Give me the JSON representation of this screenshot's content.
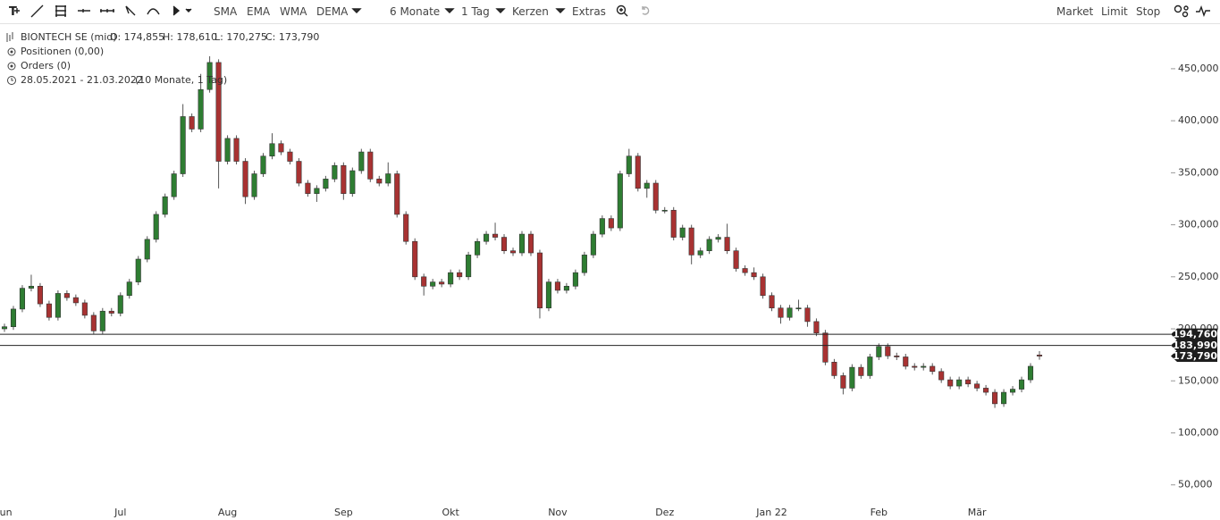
{
  "toolbar": {
    "indicators": [
      "SMA",
      "EMA",
      "WMA",
      "DEMA"
    ],
    "period": "6 Monate",
    "interval": "1 Tag",
    "chart_style": "Kerzen",
    "extras": "Extras",
    "orders": [
      "Market",
      "Limit",
      "Stop"
    ]
  },
  "info": {
    "instrument": "BIONTECH SE (mid)",
    "open": "O: 174,855",
    "high": "H: 178,610",
    "low": "L: 170,275",
    "close": "C: 173,790",
    "positions": "Positionen (0,00)",
    "orders": "Orders (0)",
    "range": "28.05.2021 - 21.03.2022",
    "range_detail": "(10 Monate, 1 Tag)"
  },
  "chart_data": {
    "type": "candlestick",
    "categories": [
      "Jun",
      null,
      null,
      null,
      null,
      null,
      null,
      null,
      null,
      null,
      null,
      null,
      null,
      "Jul",
      null,
      null,
      null,
      null,
      null,
      null,
      null,
      null,
      null,
      null,
      null,
      "Aug",
      null,
      null,
      null,
      null,
      null,
      null,
      null,
      null,
      null,
      null,
      null,
      null,
      "Sep",
      null,
      null,
      null,
      null,
      null,
      null,
      null,
      null,
      null,
      null,
      null,
      "Okt",
      null,
      null,
      null,
      null,
      null,
      null,
      null,
      null,
      null,
      null,
      null,
      "Nov",
      null,
      null,
      null,
      null,
      null,
      null,
      null,
      null,
      null,
      null,
      null,
      "Dez",
      null,
      null,
      null,
      null,
      null,
      null,
      null,
      null,
      null,
      null,
      null,
      "Jan 22",
      null,
      null,
      null,
      null,
      null,
      null,
      null,
      null,
      null,
      null,
      null,
      "Feb",
      null,
      null,
      null,
      null,
      null,
      null,
      null,
      null,
      null,
      null,
      "Mär",
      null,
      null,
      null,
      null,
      null,
      null,
      null
    ],
    "open": [
      200,
      202,
      219,
      239,
      241,
      224,
      211,
      234,
      230,
      225,
      213,
      198,
      217,
      215,
      232,
      245,
      267,
      286,
      310,
      327,
      349,
      404,
      392,
      430,
      456,
      361,
      383,
      361,
      327,
      349,
      366,
      378,
      370,
      361,
      340,
      330,
      335,
      344,
      357,
      330,
      352,
      370,
      344,
      340,
      349,
      310,
      284,
      250,
      241,
      245,
      243,
      254,
      250,
      271,
      284,
      291,
      288,
      275,
      273,
      291,
      273,
      220,
      245,
      237,
      241,
      254,
      271,
      291,
      306,
      297,
      349,
      366,
      335,
      340,
      314,
      314,
      288,
      297,
      271,
      275,
      286,
      288,
      275,
      258,
      254,
      250,
      232,
      220,
      211,
      220,
      220,
      207,
      196,
      168,
      155,
      143,
      163,
      155,
      173,
      183,
      174,
      173,
      164,
      163,
      164,
      159,
      151,
      145,
      151,
      147,
      143,
      139,
      128,
      139,
      142,
      151,
      174.855
    ],
    "high": [
      205,
      222,
      242,
      252,
      244,
      227,
      237,
      237,
      233,
      228,
      216,
      220,
      220,
      235,
      248,
      270,
      289,
      313,
      330,
      352,
      416,
      407,
      445,
      462,
      459,
      386,
      386,
      364,
      352,
      369,
      388,
      381,
      373,
      364,
      343,
      338,
      347,
      360,
      360,
      355,
      373,
      373,
      347,
      360,
      352,
      313,
      287,
      253,
      248,
      248,
      257,
      257,
      274,
      287,
      294,
      302,
      291,
      278,
      294,
      294,
      276,
      248,
      248,
      244,
      257,
      274,
      294,
      309,
      309,
      352,
      373,
      369,
      343,
      343,
      317,
      317,
      300,
      300,
      278,
      289,
      291,
      301,
      278,
      261,
      259,
      253,
      235,
      223,
      223,
      228,
      223,
      210,
      199,
      171,
      158,
      166,
      166,
      176,
      186,
      186,
      177,
      176,
      167,
      167,
      167,
      162,
      154,
      154,
      154,
      150,
      146,
      142,
      142,
      145,
      154,
      167,
      178.61
    ],
    "low": [
      197,
      199,
      216,
      236,
      221,
      208,
      208,
      227,
      222,
      210,
      195,
      195,
      212,
      212,
      229,
      242,
      264,
      283,
      307,
      324,
      346,
      389,
      389,
      427,
      335,
      358,
      358,
      320,
      324,
      346,
      363,
      367,
      358,
      337,
      327,
      322,
      332,
      341,
      324,
      327,
      349,
      341,
      337,
      337,
      307,
      281,
      247,
      232,
      238,
      240,
      240,
      247,
      247,
      268,
      281,
      285,
      272,
      270,
      270,
      270,
      210,
      217,
      234,
      234,
      238,
      251,
      268,
      288,
      294,
      294,
      346,
      332,
      326,
      311,
      311,
      285,
      285,
      262,
      268,
      272,
      283,
      272,
      255,
      251,
      247,
      229,
      217,
      205,
      208,
      217,
      202,
      193,
      165,
      152,
      137,
      140,
      152,
      152,
      170,
      171,
      170,
      161,
      160,
      160,
      156,
      148,
      142,
      142,
      144,
      140,
      136,
      124,
      125,
      136,
      139,
      148,
      170.275
    ],
    "close": [
      202,
      219,
      239,
      241,
      224,
      211,
      234,
      230,
      225,
      213,
      198,
      217,
      215,
      232,
      245,
      267,
      286,
      310,
      327,
      349,
      404,
      392,
      430,
      456,
      361,
      383,
      361,
      327,
      349,
      366,
      378,
      370,
      361,
      340,
      330,
      335,
      344,
      357,
      330,
      352,
      370,
      344,
      340,
      349,
      310,
      284,
      250,
      241,
      245,
      243,
      254,
      250,
      271,
      284,
      291,
      288,
      275,
      273,
      291,
      273,
      220,
      245,
      237,
      241,
      254,
      271,
      291,
      306,
      297,
      349,
      366,
      335,
      340,
      314,
      314,
      288,
      297,
      271,
      275,
      286,
      288,
      275,
      258,
      254,
      250,
      232,
      220,
      211,
      220,
      220,
      207,
      196,
      168,
      155,
      143,
      163,
      155,
      173,
      183,
      174,
      173,
      164,
      163,
      164,
      159,
      151,
      145,
      151,
      147,
      143,
      139,
      128,
      139,
      142,
      151,
      164,
      173.79
    ],
    "up_color": "#2e7d32",
    "down_color": "#a83232",
    "ylim": [
      30,
      492
    ],
    "yticks": [
      {
        "value": 50,
        "label": "50,000"
      },
      {
        "value": 100,
        "label": "100,000"
      },
      {
        "value": 150,
        "label": "150,000"
      },
      {
        "value": 200,
        "label": "200,000"
      },
      {
        "value": 250,
        "label": "250,000"
      },
      {
        "value": 300,
        "label": "300,000"
      },
      {
        "value": 350,
        "label": "350,000"
      },
      {
        "value": 400,
        "label": "400,000"
      },
      {
        "value": 450,
        "label": "450,000"
      }
    ],
    "price_lines": [
      {
        "value": 194.76,
        "label": "194,760"
      },
      {
        "value": 183.99,
        "label": "183,990"
      }
    ],
    "last_price": {
      "value": 173.79,
      "label": "173,790"
    }
  }
}
